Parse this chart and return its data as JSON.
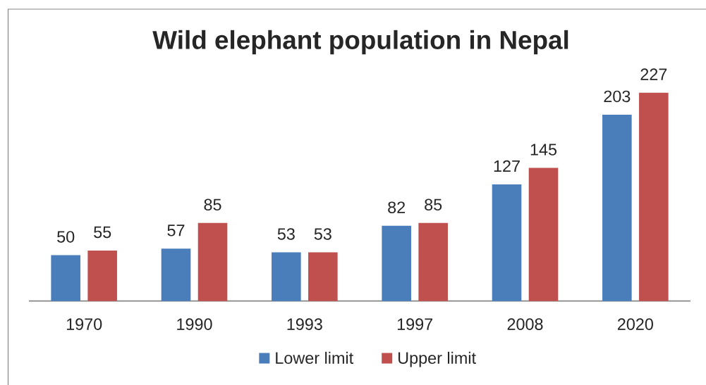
{
  "chart_data": {
    "type": "bar",
    "title": "Wild elephant population in Nepal",
    "categories": [
      "1970",
      "1990",
      "1993",
      "1997",
      "2008",
      "2020"
    ],
    "series": [
      {
        "name": "Lower limit",
        "color": "#4a7ebb",
        "values": [
          50,
          57,
          53,
          82,
          127,
          203
        ]
      },
      {
        "name": "Upper limit",
        "color": "#c0504d",
        "values": [
          55,
          85,
          53,
          85,
          145,
          227
        ]
      }
    ],
    "data_labels": true,
    "legend": "bottom"
  }
}
